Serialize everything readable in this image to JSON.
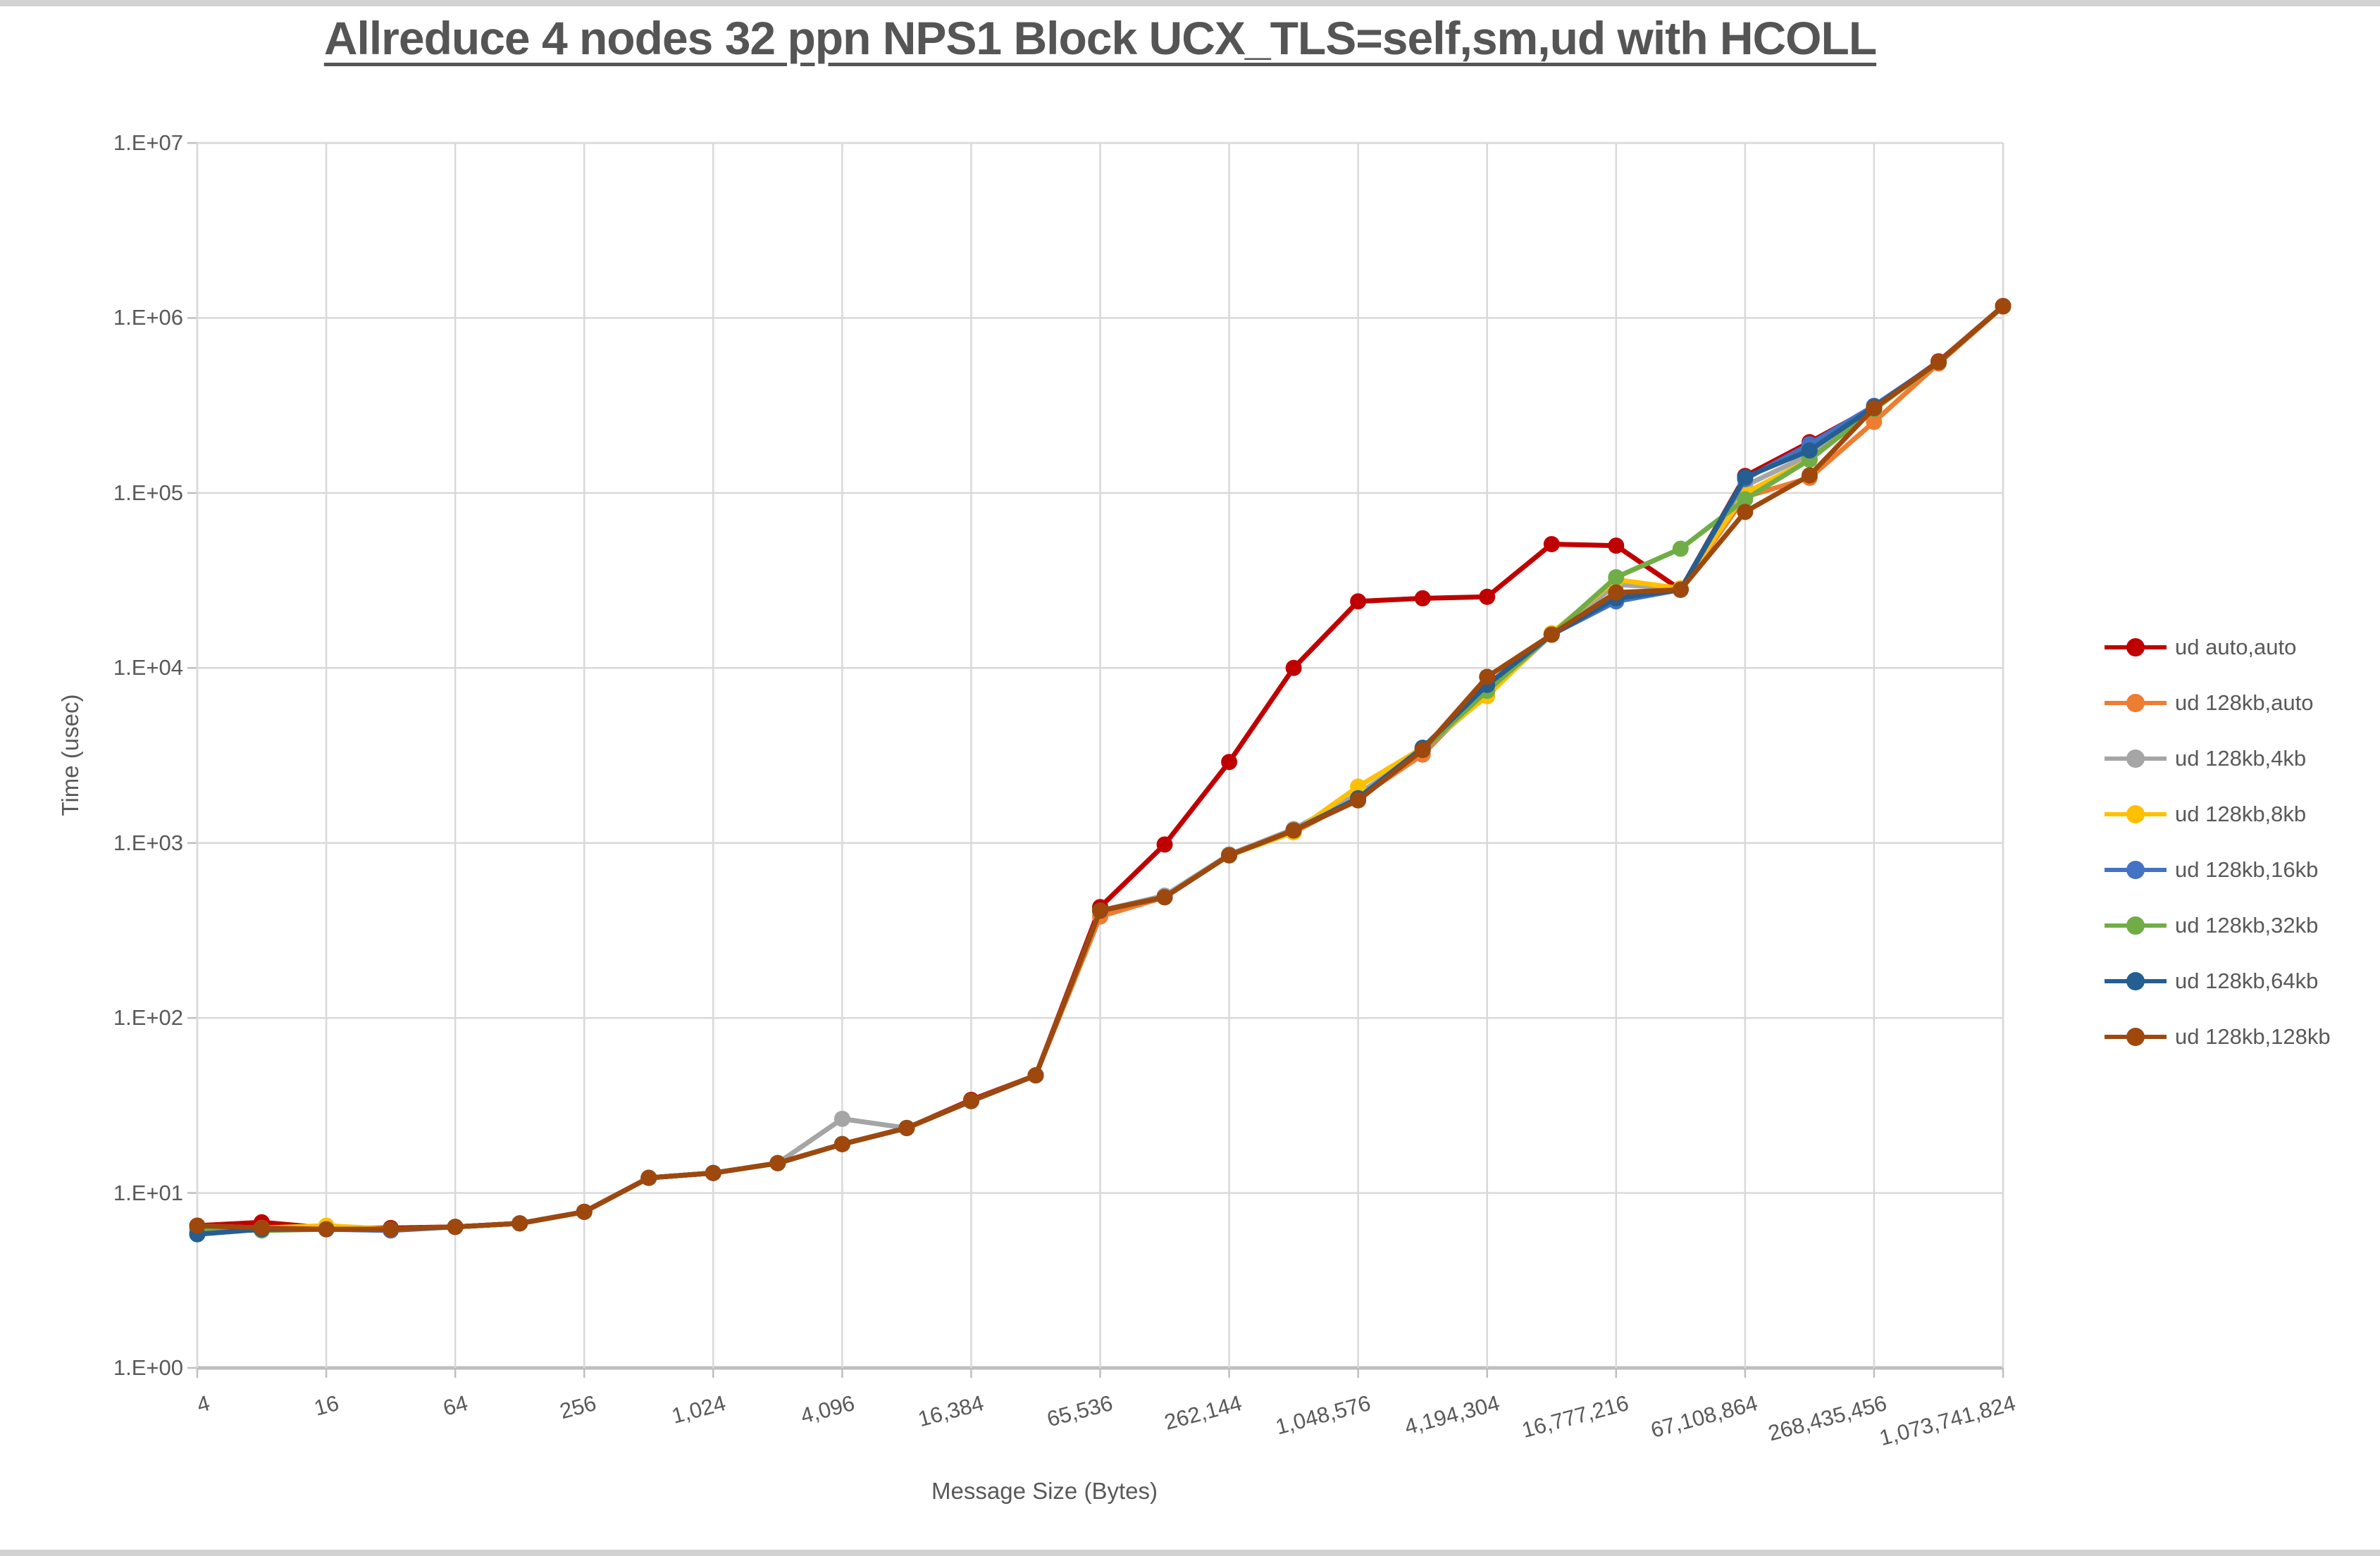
{
  "title": "Allreduce 4 nodes 32 ppn NPS1 Block UCX_TLS=self,sm,ud with HCOLL",
  "chart_data": {
    "type": "line",
    "title": "Allreduce 4 nodes 32 ppn NPS1 Block UCX_TLS=self,sm,ud with HCOLL",
    "xlabel": "Message Size (Bytes)",
    "ylabel": "Time (usec)",
    "x_scale": "log2",
    "y_scale": "log10",
    "xlim": [
      4,
      1073741824
    ],
    "ylim": [
      1,
      10000000
    ],
    "grid": true,
    "legend_position": "right",
    "x": [
      4,
      8,
      16,
      32,
      64,
      128,
      256,
      512,
      1024,
      2048,
      4096,
      8192,
      16384,
      32768,
      65536,
      131072,
      262144,
      524288,
      1048576,
      2097152,
      4194304,
      8388608,
      16777216,
      33554432,
      67108864,
      134217728,
      268435456,
      536870912,
      1073741824
    ],
    "x_tick_labels": [
      "4",
      "16",
      "64",
      "256",
      "1,024",
      "4,096",
      "16,384",
      "65,536",
      "262,144",
      "1,048,576",
      "4,194,304",
      "16,777,216",
      "67,108,864",
      "268,435,456",
      "1,073,741,824"
    ],
    "y_tick_labels": [
      "1.E+00",
      "1.E+01",
      "1.E+02",
      "1.E+03",
      "1.E+04",
      "1.E+05",
      "1.E+06",
      "1.E+07"
    ],
    "series": [
      {
        "name": "ud auto,auto",
        "color": "#C00000",
        "values": [
          6.5,
          6.8,
          6.3,
          6.3,
          6.4,
          6.7,
          7.8,
          12.2,
          13.0,
          14.8,
          19.0,
          23.5,
          34.0,
          47,
          430,
          980,
          2900,
          10000,
          24000,
          25000,
          25500,
          51000,
          50000,
          28000,
          125000,
          195000,
          310000,
          565000,
          1170000
        ]
      },
      {
        "name": "ud 128kb,auto",
        "color": "#ED7D31",
        "values": [
          6.5,
          6.3,
          6.2,
          6.2,
          6.4,
          6.7,
          7.8,
          12.2,
          13.0,
          14.8,
          19.0,
          23.5,
          33.5,
          47,
          380,
          490,
          850,
          1150,
          1800,
          3200,
          7600,
          15500,
          31000,
          28500,
          95000,
          122000,
          255000,
          550000,
          1160000
        ]
      },
      {
        "name": "ud 128kb,4kb",
        "color": "#A5A5A5",
        "values": [
          6.4,
          6.3,
          6.2,
          6.2,
          6.4,
          6.7,
          7.8,
          12.2,
          13.0,
          14.8,
          26.5,
          23.5,
          33.5,
          47,
          410,
          500,
          860,
          1200,
          1900,
          3400,
          7000,
          15500,
          30000,
          28500,
          110000,
          165000,
          300000,
          560000,
          1170000
        ]
      },
      {
        "name": "ud 128kb,8kb",
        "color": "#FFC000",
        "values": [
          6.4,
          6.3,
          6.5,
          6.2,
          6.4,
          6.7,
          7.8,
          12.2,
          13.0,
          14.8,
          19.0,
          23.5,
          33.5,
          47,
          410,
          490,
          850,
          1150,
          2100,
          3500,
          6900,
          15800,
          32000,
          28500,
          100000,
          155000,
          300000,
          560000,
          1170000
        ]
      },
      {
        "name": "ud 128kb,16kb",
        "color": "#4472C4",
        "values": [
          5.9,
          6.2,
          6.2,
          6.1,
          6.4,
          6.7,
          7.8,
          12.2,
          13.0,
          14.8,
          19.0,
          23.5,
          33.5,
          47,
          410,
          490,
          850,
          1180,
          1800,
          3500,
          8000,
          15500,
          24000,
          28000,
          120000,
          190000,
          315000,
          560000,
          1170000
        ]
      },
      {
        "name": "ud 128kb,32kb",
        "color": "#70AD47",
        "values": [
          6.2,
          6.1,
          6.2,
          6.2,
          6.4,
          6.7,
          7.8,
          12.2,
          13.0,
          14.8,
          19.0,
          23.5,
          33.5,
          47,
          410,
          490,
          850,
          1180,
          1800,
          3400,
          7400,
          15500,
          33000,
          48000,
          92000,
          155000,
          300000,
          560000,
          1170000
        ]
      },
      {
        "name": "ud 128kb,64kb",
        "color": "#255E91",
        "values": [
          5.8,
          6.2,
          6.2,
          6.2,
          6.4,
          6.7,
          7.8,
          12.2,
          13.0,
          14.8,
          19.0,
          23.5,
          33.5,
          47,
          410,
          490,
          850,
          1180,
          1800,
          3500,
          8000,
          15500,
          25000,
          28000,
          123000,
          175000,
          310000,
          560000,
          1170000
        ]
      },
      {
        "name": "ud 128kb,128kb",
        "color": "#9E480E",
        "values": [
          6.5,
          6.3,
          6.2,
          6.2,
          6.4,
          6.7,
          7.8,
          12.2,
          13.0,
          14.8,
          19.0,
          23.5,
          33.5,
          47,
          410,
          490,
          850,
          1180,
          1750,
          3400,
          8900,
          15500,
          27000,
          28000,
          78000,
          126000,
          305000,
          560000,
          1170000
        ]
      }
    ]
  },
  "style": {
    "gridline_color": "#D9D9D9",
    "axis_line_color": "#BFBFBF",
    "text_color": "#595959",
    "title_color": "#555555",
    "background": "#FFFFFF"
  }
}
